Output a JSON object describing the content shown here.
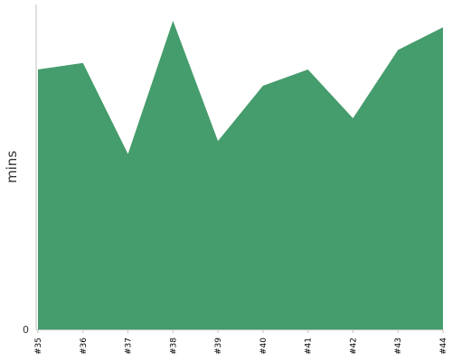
{
  "chart_data": {
    "type": "area",
    "ylabel": "mins",
    "y_tick_labels": [
      "0"
    ],
    "ylim": [
      0,
      100
    ],
    "grid": false,
    "legend": "none",
    "categories": [
      "#35",
      "#36",
      "#37",
      "#38",
      "#39",
      "#40",
      "#41",
      "#42",
      "#43",
      "#44"
    ],
    "series": [
      {
        "values": [
          80,
          82,
          54,
          95,
          58,
          75,
          80,
          65,
          86,
          93
        ],
        "color": "#459c6c"
      }
    ],
    "axis_color": "#c0c0c0"
  }
}
